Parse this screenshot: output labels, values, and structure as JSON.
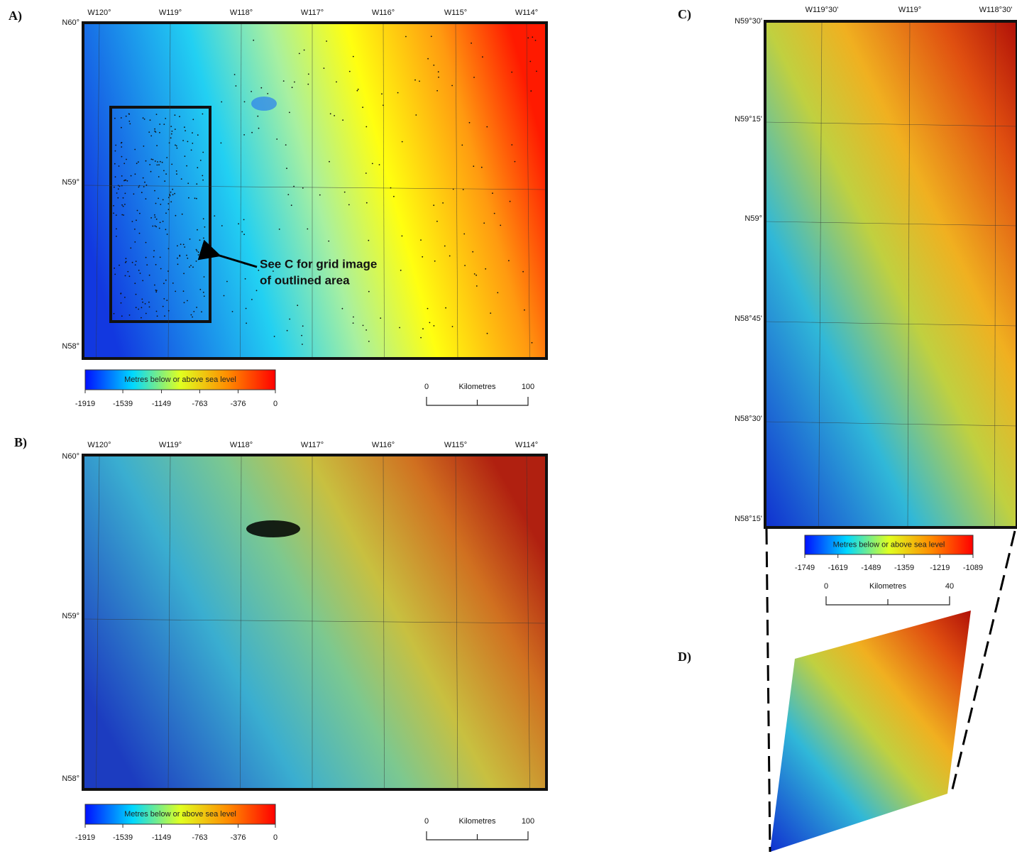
{
  "panels": {
    "a": {
      "label": "A)",
      "lon_labels": [
        "W120°",
        "W119°",
        "W118°",
        "W117°",
        "W116°",
        "W115°",
        "W114°"
      ],
      "lat_labels": [
        "N60°",
        "N59°",
        "N58°"
      ],
      "colorbar": {
        "title": "Metres below or above sea level",
        "ticks": [
          -1919,
          -1539,
          -1149,
          -763,
          -376,
          0
        ]
      },
      "scale": {
        "unit": "Kilometres",
        "ticks": [
          0,
          100
        ]
      },
      "annotation": [
        "See C for grid image",
        "of outlined area"
      ]
    },
    "b": {
      "label": "B)",
      "lon_labels": [
        "W120°",
        "W119°",
        "W118°",
        "W117°",
        "W116°",
        "W115°",
        "W114°"
      ],
      "lat_labels": [
        "N60°",
        "N59°",
        "N58°"
      ],
      "colorbar": {
        "title": "Metres below or above sea level",
        "ticks": [
          -1919,
          -1539,
          -1149,
          -763,
          -376,
          0
        ]
      },
      "scale": {
        "unit": "Kilometres",
        "ticks": [
          0,
          100
        ]
      }
    },
    "c": {
      "label": "C)",
      "lon_labels": [
        "W119°30'",
        "W119°",
        "W118°30'"
      ],
      "lat_labels": [
        "N59°30'",
        "N59°15'",
        "N59°",
        "N58°45'",
        "N58°30'",
        "N58°15'"
      ],
      "colorbar": {
        "title": "Metres below or above sea level",
        "ticks": [
          -1749,
          -1619,
          -1489,
          -1359,
          -1219,
          -1089
        ]
      },
      "scale": {
        "unit": "Kilometres",
        "ticks": [
          0,
          40
        ]
      }
    },
    "d": {
      "label": "D)"
    }
  }
}
